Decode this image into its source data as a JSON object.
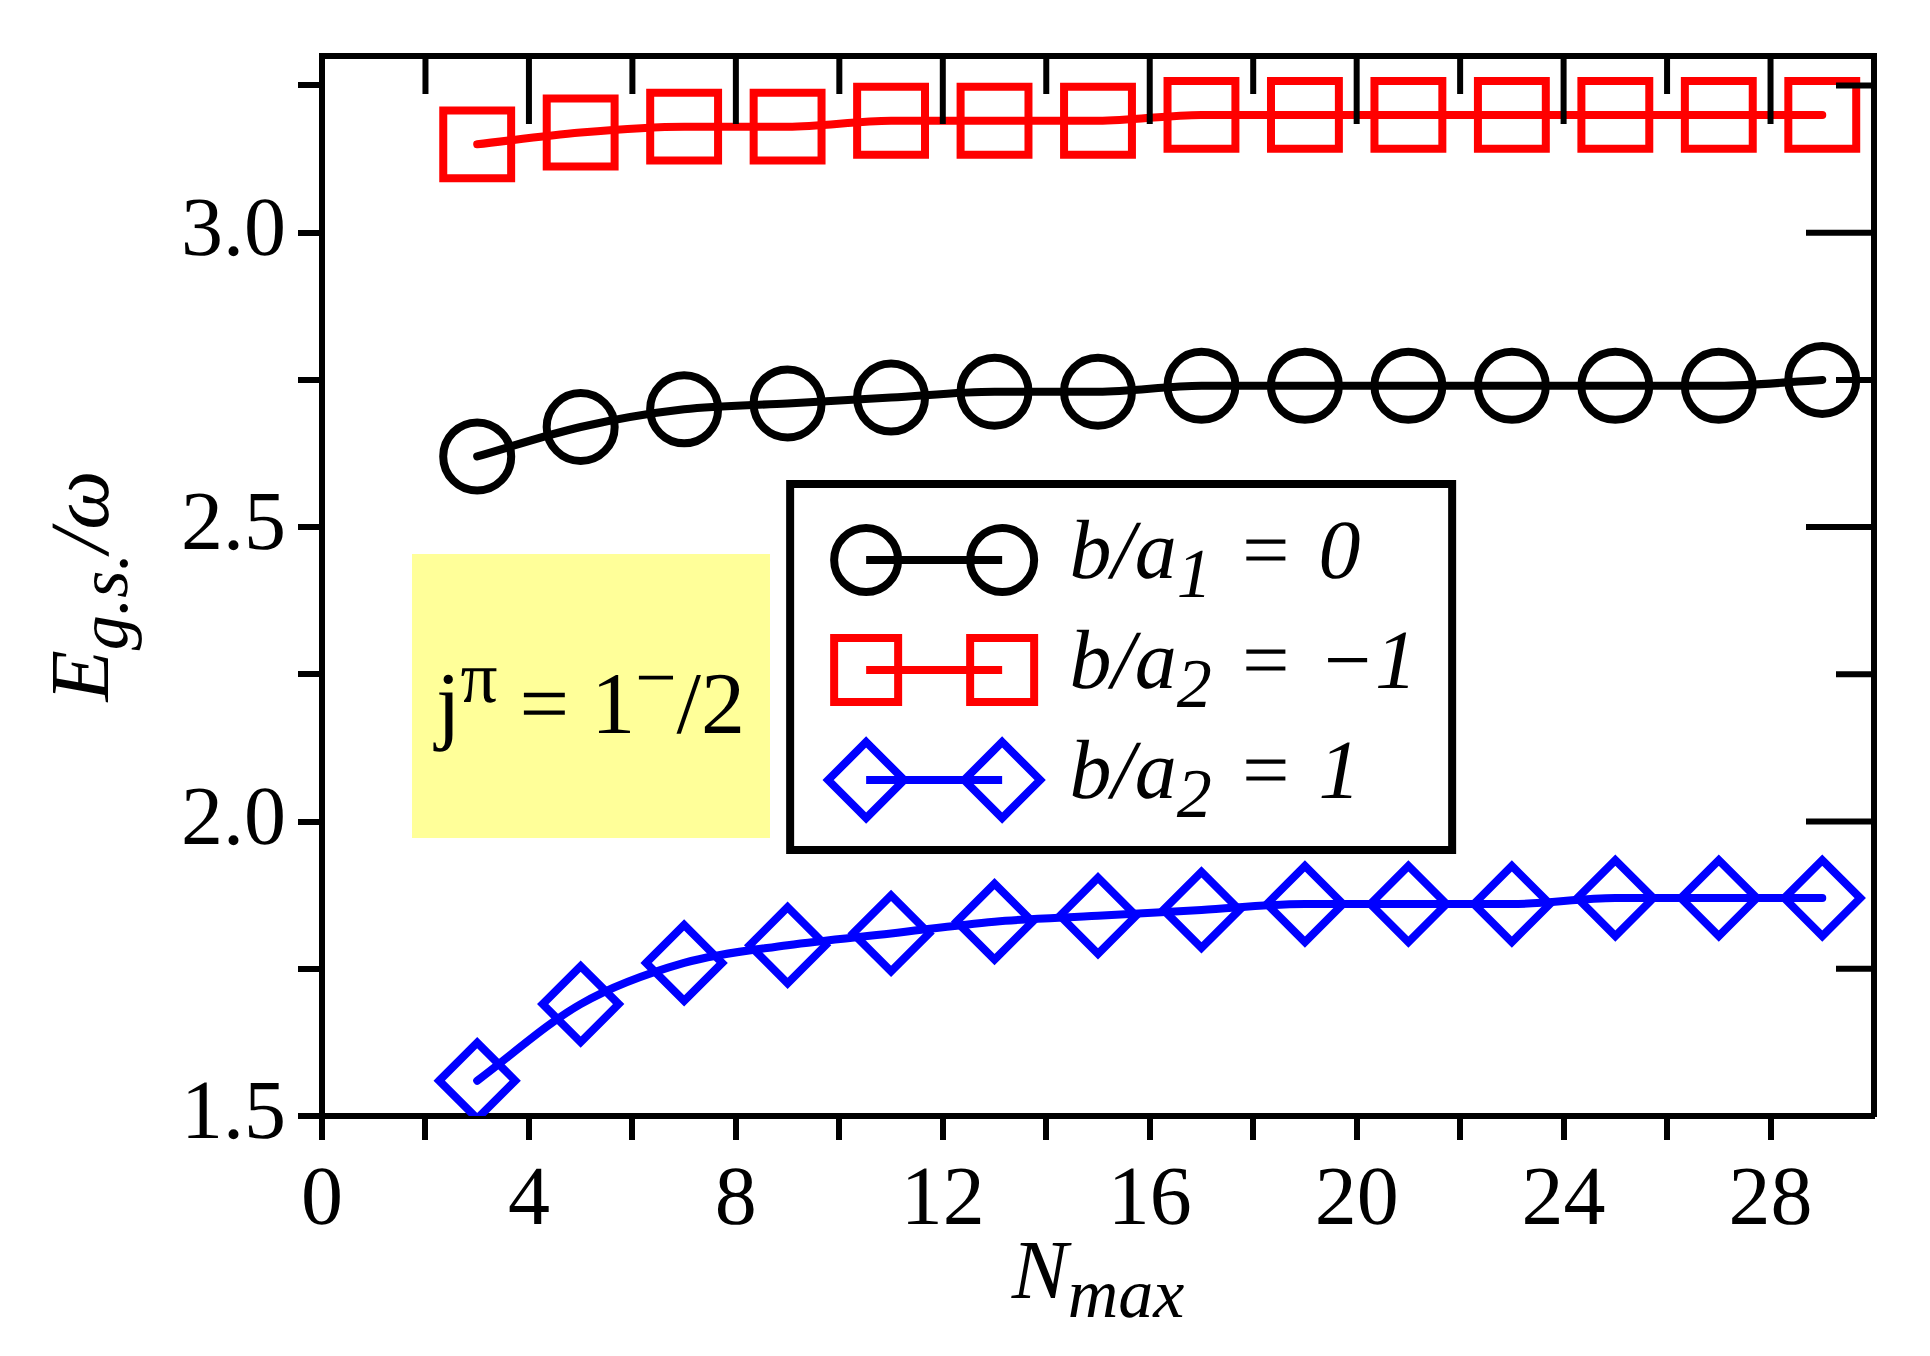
{
  "chart_data": {
    "type": "line",
    "xlabel": "N$_{max}$",
    "ylabel": "E$_{g.s.}$/ω",
    "annotations": [
      "j$^{π}$ = 1$^{−}$/2"
    ],
    "x": [
      3,
      5,
      7,
      9,
      11,
      13,
      15,
      17,
      19,
      21,
      23,
      25,
      27,
      29
    ],
    "series": [
      {
        "name": "b/a$_{1}$ = 0",
        "color": "#000000",
        "marker": "circle",
        "values": [
          2.62,
          2.67,
          2.7,
          2.71,
          2.72,
          2.73,
          2.73,
          2.74,
          2.74,
          2.74,
          2.74,
          2.74,
          2.74,
          2.75
        ]
      },
      {
        "name": "b/a$_{2}$ = −1",
        "color": "#ff0000",
        "marker": "square",
        "values": [
          3.15,
          3.17,
          3.18,
          3.18,
          3.19,
          3.19,
          3.19,
          3.2,
          3.2,
          3.2,
          3.2,
          3.2,
          3.2,
          3.2
        ]
      },
      {
        "name": "b/a$_{2}$ = 1",
        "color": "#0000ff",
        "marker": "diamond",
        "values": [
          1.56,
          1.69,
          1.76,
          1.79,
          1.81,
          1.83,
          1.84,
          1.85,
          1.86,
          1.86,
          1.86,
          1.87,
          1.87,
          1.87
        ]
      }
    ],
    "xlim": [
      0,
      30
    ],
    "xticks": [
      0,
      {
        "value": 2,
        "label": null
      },
      4,
      {
        "value": 6,
        "label": null
      },
      8,
      {
        "value": 10,
        "label": null
      },
      12,
      {
        "value": 14,
        "label": null
      },
      16,
      {
        "value": 18,
        "label": null
      },
      20,
      {
        "value": 22,
        "label": null
      },
      24,
      {
        "value": 26,
        "label": null
      },
      28
    ],
    "ylim": [
      1.5,
      3.3
    ],
    "yticks": [
      1.5,
      {
        "value": 1.75,
        "label": null
      },
      {
        "value": 2,
        "label": "2.0"
      },
      {
        "value": 2.25,
        "label": null
      },
      2.5,
      {
        "value": 2.75,
        "label": null
      },
      {
        "value": 3,
        "label": "3.0"
      },
      {
        "value": 3.25,
        "label": null
      }
    ],
    "legend": "center",
    "line_style": "solid"
  }
}
